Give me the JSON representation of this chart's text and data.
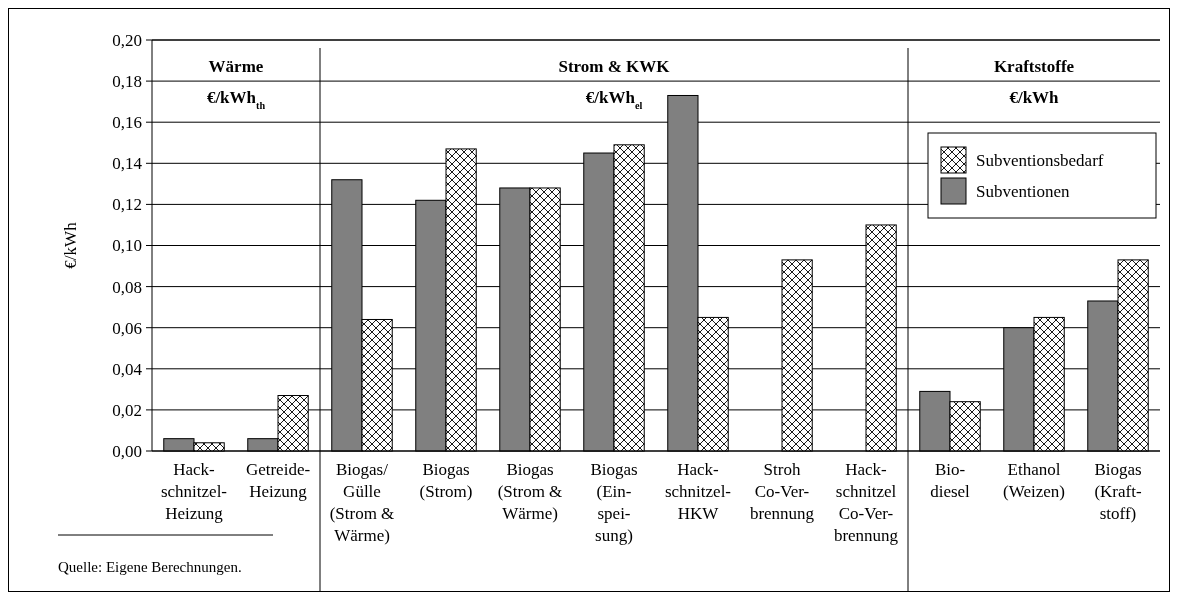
{
  "chart_data": {
    "type": "bar",
    "ylabel": "€/kWh",
    "categories": [
      "Hack-\nschnitzel-\nHeizung",
      "Getreide-\nHeizung",
      "Biogas/\nGülle\n(Strom &\nWärme)",
      "Biogas\n(Strom)",
      "Biogas\n(Strom &\nWärme)",
      "Biogas\n(Ein-\nspei-\nsung)",
      "Hack-\nschnitzel-\nHKW",
      "Stroh\nCo-Ver-\nbrennung",
      "Hack-\nschnitzel\nCo-Ver-\nbrennung",
      "Bio-\ndiesel",
      "Ethanol\n(Weizen)",
      "Biogas\n(Kraft-\nstoff)"
    ],
    "series": [
      {
        "name": "Subventionen",
        "color": "#808080",
        "values": [
          0.006,
          0.006,
          0.132,
          0.122,
          0.128,
          0.145,
          0.173,
          null,
          null,
          0.029,
          0.06,
          0.073
        ]
      },
      {
        "name": "Subventionsbedarf",
        "color": "#000000",
        "values": [
          0.004,
          0.027,
          0.064,
          0.147,
          0.128,
          0.149,
          0.065,
          0.093,
          0.11,
          0.024,
          0.065,
          0.093
        ]
      }
    ],
    "ylim": [
      0,
      0.2
    ],
    "yticks": [
      {
        "value": 0,
        "label": "0,00"
      },
      {
        "value": 0.02,
        "label": "0,02"
      },
      {
        "value": 0.04,
        "label": "0,04"
      },
      {
        "value": 0.06,
        "label": "0,06"
      },
      {
        "value": 0.08,
        "label": "0,08"
      },
      {
        "value": 0.1,
        "label": "0,10"
      },
      {
        "value": 0.12,
        "label": "0,12"
      },
      {
        "value": 0.14,
        "label": "0,14"
      },
      {
        "value": 0.16,
        "label": "0,16"
      },
      {
        "value": 0.18,
        "label": "0,18"
      },
      {
        "value": 0.2,
        "label": "0,20"
      }
    ],
    "grid": "y",
    "legend": "top right",
    "annotations": [
      "Wärme\n€/kWh$_{th}$",
      "Strom & KWK\n€/kWh$_{el}$",
      "Kraftstoffe\n€/kWh",
      "Quelle: Eigene Berechnungen."
    ]
  }
}
